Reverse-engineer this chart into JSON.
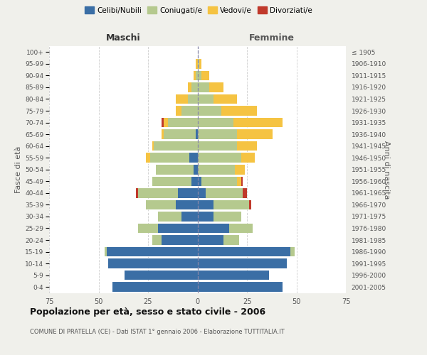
{
  "age_groups": [
    "0-4",
    "5-9",
    "10-14",
    "15-19",
    "20-24",
    "25-29",
    "30-34",
    "35-39",
    "40-44",
    "45-49",
    "50-54",
    "55-59",
    "60-64",
    "65-69",
    "70-74",
    "75-79",
    "80-84",
    "85-89",
    "90-94",
    "95-99",
    "100+"
  ],
  "birth_years": [
    "2001-2005",
    "1996-2000",
    "1991-1995",
    "1986-1990",
    "1981-1985",
    "1976-1980",
    "1971-1975",
    "1966-1970",
    "1961-1965",
    "1956-1960",
    "1951-1955",
    "1946-1950",
    "1941-1945",
    "1936-1940",
    "1931-1935",
    "1926-1930",
    "1921-1925",
    "1916-1920",
    "1911-1915",
    "1906-1910",
    "≤ 1905"
  ],
  "colors": {
    "celibi": "#3a6ea5",
    "coniugati": "#b5c98e",
    "vedovi": "#f5c342",
    "divorziati": "#c0392b"
  },
  "males": {
    "celibi": [
      43,
      37,
      45,
      46,
      18,
      20,
      8,
      11,
      10,
      3,
      2,
      4,
      0,
      1,
      0,
      0,
      0,
      0,
      0,
      0,
      0
    ],
    "coniugati": [
      0,
      0,
      0,
      1,
      5,
      10,
      12,
      15,
      20,
      20,
      19,
      20,
      22,
      16,
      15,
      8,
      5,
      3,
      1,
      0,
      0
    ],
    "vedovi": [
      0,
      0,
      0,
      0,
      0,
      0,
      0,
      0,
      0,
      0,
      0,
      2,
      1,
      1,
      2,
      3,
      6,
      2,
      1,
      1,
      0
    ],
    "divorziati": [
      0,
      0,
      0,
      0,
      0,
      0,
      0,
      0,
      1,
      0,
      0,
      0,
      0,
      0,
      1,
      0,
      0,
      0,
      0,
      0,
      0
    ]
  },
  "females": {
    "nubili": [
      43,
      36,
      45,
      47,
      13,
      16,
      8,
      8,
      4,
      2,
      0,
      0,
      0,
      0,
      0,
      0,
      0,
      0,
      0,
      0,
      0
    ],
    "coniugate": [
      0,
      0,
      0,
      2,
      8,
      12,
      14,
      18,
      19,
      18,
      19,
      22,
      20,
      20,
      18,
      12,
      8,
      6,
      2,
      1,
      0
    ],
    "vedove": [
      0,
      0,
      0,
      0,
      0,
      0,
      0,
      0,
      0,
      2,
      5,
      7,
      10,
      18,
      25,
      18,
      12,
      7,
      4,
      1,
      0
    ],
    "divorziate": [
      0,
      0,
      0,
      0,
      0,
      0,
      0,
      1,
      2,
      1,
      0,
      0,
      0,
      0,
      0,
      0,
      0,
      0,
      0,
      0,
      0
    ]
  },
  "xlim": 75,
  "title": "Popolazione per età, sesso e stato civile - 2006",
  "subtitle": "COMUNE DI PRATELLA (CE) - Dati ISTAT 1° gennaio 2006 - Elaborazione TUTTITALIA.IT",
  "ylabel_left": "Fasce di età",
  "ylabel_right": "Anni di nascita",
  "xlabel_left": "Maschi",
  "xlabel_right": "Femmine",
  "background_color": "#f0f0eb",
  "plot_bg": "#ffffff"
}
